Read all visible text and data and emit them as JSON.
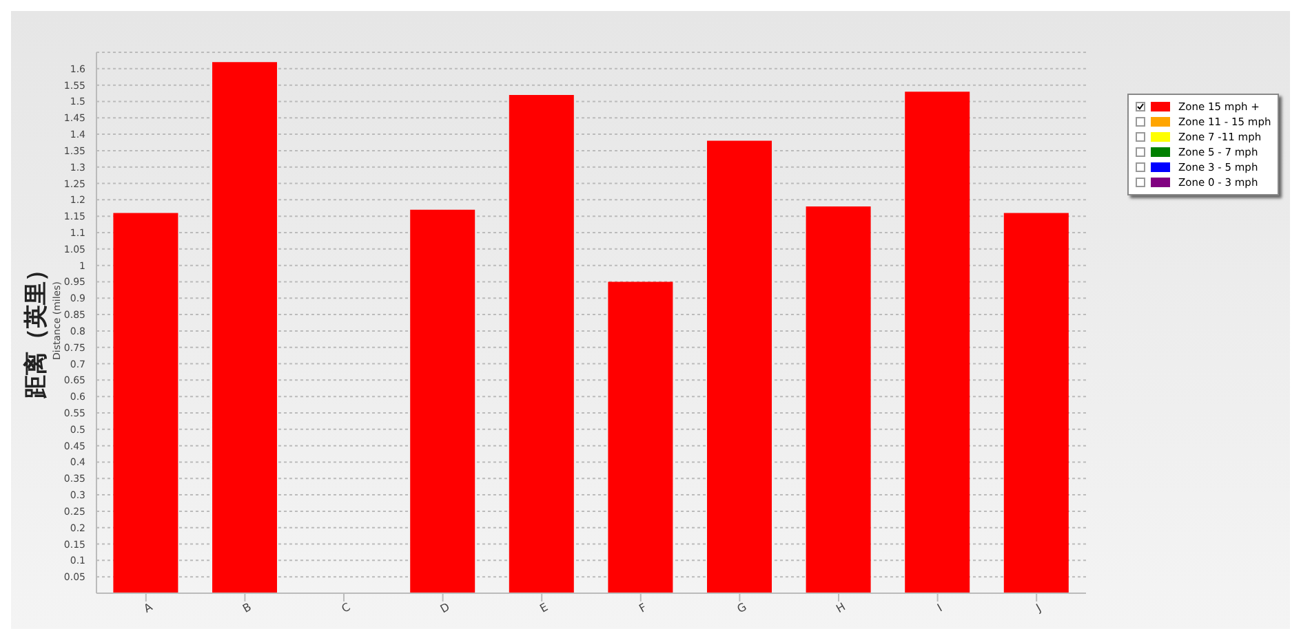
{
  "chart_data": {
    "type": "bar",
    "ylabel": "距离（英里）",
    "annotations": [
      "Distance (miles)"
    ],
    "categories": [
      "A",
      "B",
      "C",
      "D",
      "E",
      "F",
      "G",
      "H",
      "I",
      "J"
    ],
    "series": [
      {
        "name": "Zone 15 mph +",
        "color": "#ff0000",
        "values": [
          1.16,
          1.62,
          null,
          1.17,
          1.52,
          0.95,
          1.38,
          1.18,
          1.53,
          1.16
        ]
      },
      {
        "name": "Zone 11 - 15 mph",
        "color": "#ffa500",
        "values": [
          null,
          null,
          null,
          null,
          null,
          null,
          null,
          null,
          null,
          null
        ]
      },
      {
        "name": "Zone 7 -11 mph",
        "color": "#ffff00",
        "values": [
          null,
          null,
          null,
          null,
          null,
          null,
          null,
          null,
          null,
          null
        ]
      },
      {
        "name": "Zone 5 - 7 mph",
        "color": "#008000",
        "values": [
          null,
          null,
          null,
          null,
          null,
          null,
          null,
          null,
          null,
          null
        ]
      },
      {
        "name": "Zone 3 - 5 mph",
        "color": "#0000ff",
        "values": [
          null,
          null,
          null,
          null,
          null,
          null,
          null,
          null,
          null,
          null
        ]
      },
      {
        "name": "Zone 0 - 3 mph",
        "color": "#800080",
        "values": [
          null,
          null,
          null,
          null,
          null,
          null,
          null,
          null,
          null,
          null
        ]
      }
    ],
    "stacked": true,
    "ylim": [
      0,
      1.65
    ],
    "yticks": [
      0.05,
      0.1,
      0.15,
      0.2,
      0.25,
      0.3,
      0.35,
      0.4,
      0.45,
      0.5,
      0.55,
      0.6,
      0.65,
      0.7,
      0.75,
      0.8,
      0.85,
      0.9,
      0.95,
      1,
      1.05,
      1.1,
      1.15,
      1.2,
      1.25,
      1.3,
      1.35,
      1.4,
      1.45,
      1.5,
      1.55,
      1.6
    ],
    "grid": "y",
    "legend": "top right"
  }
}
